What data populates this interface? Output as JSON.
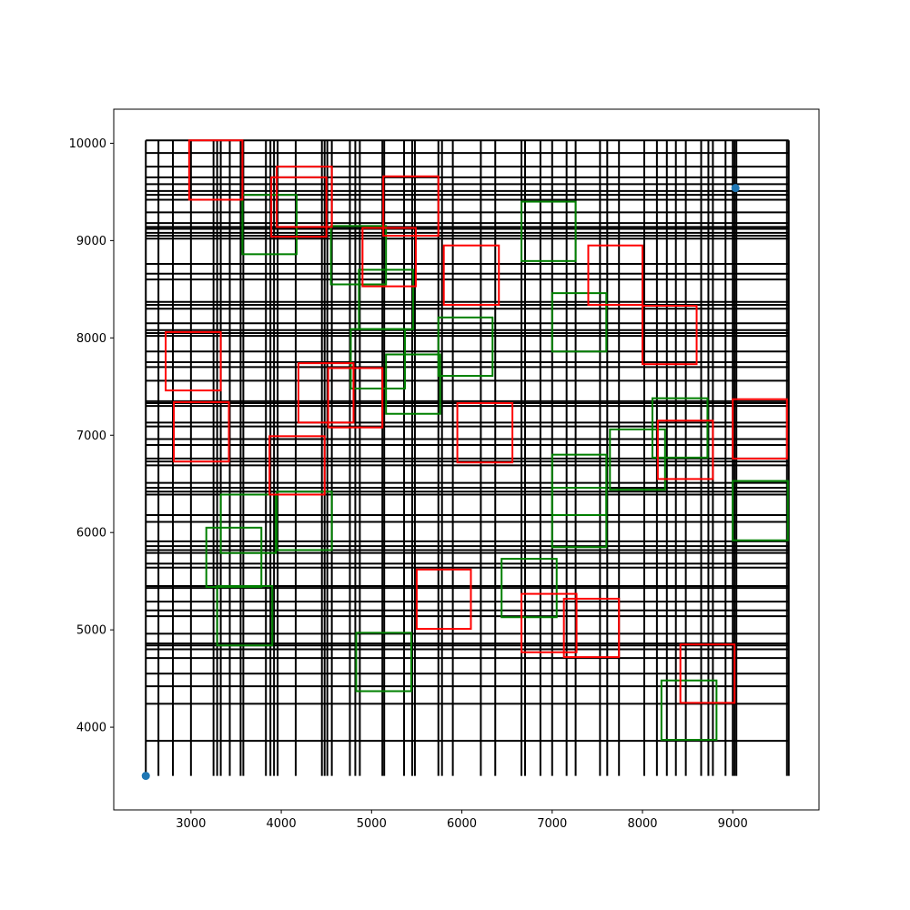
{
  "chart_data": {
    "type": "scatter",
    "title": "",
    "xlabel": "",
    "ylabel": "",
    "xlim": [
      2145,
      9955
    ],
    "ylim": [
      3150,
      10350
    ],
    "xticks": [
      3000,
      4000,
      5000,
      6000,
      7000,
      8000,
      9000
    ],
    "yticks": [
      4000,
      5000,
      6000,
      7000,
      8000,
      9000,
      10000
    ],
    "grid": false,
    "legend": "none",
    "colors": {
      "grid_lines": "#000000",
      "red_squares": "#ff0000",
      "green_squares": "#008000",
      "points": "#1f77b4"
    },
    "bounds": {
      "xmin": 2500,
      "xmax": 9620,
      "ymin": 3500,
      "ymax": 10030
    },
    "vertical_lines_x": [
      2500,
      2640,
      2800,
      3000,
      3250,
      3290,
      3330,
      3430,
      3550,
      3580,
      3830,
      3880,
      3920,
      3960,
      4160,
      4450,
      4480,
      4510,
      4560,
      4760,
      4820,
      4870,
      5120,
      5140,
      5360,
      5450,
      5480,
      5740,
      5780,
      5900,
      6210,
      6370,
      6660,
      6700,
      6870,
      7000,
      7160,
      7260,
      7530,
      7610,
      7740,
      8020,
      8160,
      8270,
      8370,
      8480,
      8650,
      8730,
      8780,
      8920,
      9000,
      9020,
      9040,
      9600,
      9620
    ],
    "horizontal_lines_y": [
      3860,
      4240,
      4420,
      4550,
      4710,
      4800,
      4840,
      4860,
      4960,
      5140,
      5200,
      5290,
      5430,
      5450,
      5640,
      5680,
      5790,
      5820,
      5860,
      5910,
      6110,
      6180,
      6390,
      6420,
      6460,
      6510,
      6690,
      6730,
      6760,
      6900,
      6960,
      7090,
      7130,
      7300,
      7330,
      7350,
      7560,
      7700,
      7750,
      7860,
      8020,
      8050,
      8080,
      8150,
      8300,
      8340,
      8370,
      8600,
      8660,
      8760,
      9020,
      9050,
      9080,
      9120,
      9140,
      9180,
      9290,
      9420,
      9470,
      9510,
      9580,
      9650,
      9760,
      9900,
      10030
    ],
    "red_squares": [
      {
        "x0": 2980,
        "y0": 9420,
        "x1": 3570,
        "y1": 10030
      },
      {
        "x0": 3950,
        "y0": 9140,
        "x1": 4560,
        "y1": 9760
      },
      {
        "x0": 3890,
        "y0": 9040,
        "x1": 4500,
        "y1": 9650
      },
      {
        "x0": 5130,
        "y0": 9050,
        "x1": 5740,
        "y1": 9660
      },
      {
        "x0": 4900,
        "y0": 8530,
        "x1": 5490,
        "y1": 9130
      },
      {
        "x0": 5800,
        "y0": 8340,
        "x1": 6410,
        "y1": 8950
      },
      {
        "x0": 7400,
        "y0": 8340,
        "x1": 8000,
        "y1": 8950
      },
      {
        "x0": 8000,
        "y0": 7730,
        "x1": 8600,
        "y1": 8330
      },
      {
        "x0": 2720,
        "y0": 7460,
        "x1": 3330,
        "y1": 8060
      },
      {
        "x0": 4190,
        "y0": 7130,
        "x1": 4800,
        "y1": 7740
      },
      {
        "x0": 4520,
        "y0": 7080,
        "x1": 5120,
        "y1": 7690
      },
      {
        "x0": 2810,
        "y0": 6730,
        "x1": 3420,
        "y1": 7340
      },
      {
        "x0": 5950,
        "y0": 6720,
        "x1": 6560,
        "y1": 7330
      },
      {
        "x0": 9000,
        "y0": 6760,
        "x1": 9600,
        "y1": 7370
      },
      {
        "x0": 8170,
        "y0": 6550,
        "x1": 8780,
        "y1": 7150
      },
      {
        "x0": 3870,
        "y0": 6390,
        "x1": 4480,
        "y1": 6990
      },
      {
        "x0": 5500,
        "y0": 5010,
        "x1": 6100,
        "y1": 5620
      },
      {
        "x0": 6660,
        "y0": 4770,
        "x1": 7270,
        "y1": 5370
      },
      {
        "x0": 7130,
        "y0": 4720,
        "x1": 7740,
        "y1": 5320
      },
      {
        "x0": 8420,
        "y0": 4250,
        "x1": 9020,
        "y1": 4850
      }
    ],
    "green_squares": [
      {
        "x0": 3570,
        "y0": 8860,
        "x1": 4170,
        "y1": 9470
      },
      {
        "x0": 4550,
        "y0": 8550,
        "x1": 5160,
        "y1": 9150
      },
      {
        "x0": 4860,
        "y0": 8090,
        "x1": 5460,
        "y1": 8700
      },
      {
        "x0": 6660,
        "y0": 8790,
        "x1": 7260,
        "y1": 9400
      },
      {
        "x0": 7000,
        "y0": 7860,
        "x1": 7600,
        "y1": 8460
      },
      {
        "x0": 5740,
        "y0": 7610,
        "x1": 6340,
        "y1": 8210
      },
      {
        "x0": 4770,
        "y0": 7480,
        "x1": 5370,
        "y1": 8090
      },
      {
        "x0": 5160,
        "y0": 7220,
        "x1": 5760,
        "y1": 7830
      },
      {
        "x0": 8110,
        "y0": 6770,
        "x1": 8720,
        "y1": 7380
      },
      {
        "x0": 7640,
        "y0": 6440,
        "x1": 8250,
        "y1": 7060
      },
      {
        "x0": 7000,
        "y0": 6180,
        "x1": 7600,
        "y1": 6800
      },
      {
        "x0": 7000,
        "y0": 5850,
        "x1": 7600,
        "y1": 6460
      },
      {
        "x0": 3950,
        "y0": 5820,
        "x1": 4560,
        "y1": 6420
      },
      {
        "x0": 3330,
        "y0": 5790,
        "x1": 3940,
        "y1": 6390
      },
      {
        "x0": 9000,
        "y0": 5920,
        "x1": 9610,
        "y1": 6530
      },
      {
        "x0": 3170,
        "y0": 5440,
        "x1": 3780,
        "y1": 6050
      },
      {
        "x0": 6440,
        "y0": 5130,
        "x1": 7050,
        "y1": 5730
      },
      {
        "x0": 3290,
        "y0": 4840,
        "x1": 3900,
        "y1": 5450
      },
      {
        "x0": 4830,
        "y0": 4370,
        "x1": 5440,
        "y1": 4970
      },
      {
        "x0": 8210,
        "y0": 3870,
        "x1": 8820,
        "y1": 4480
      }
    ],
    "points": [
      {
        "x": 2500,
        "y": 3500
      },
      {
        "x": 9030,
        "y": 9540
      }
    ]
  }
}
